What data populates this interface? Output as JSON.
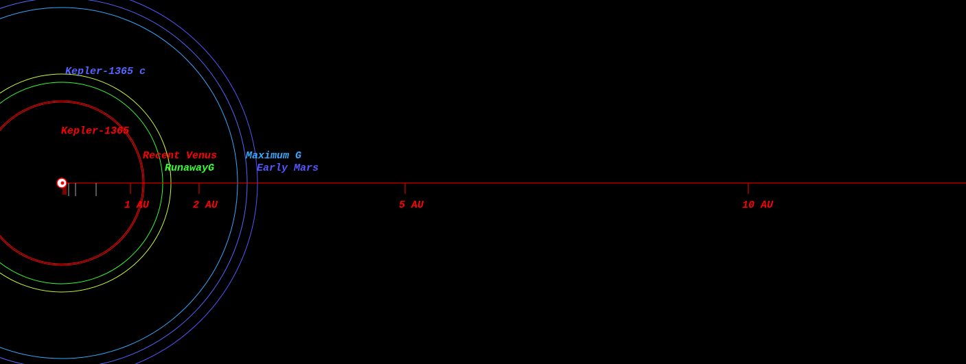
{
  "colors": {
    "background": "#000000",
    "axis": "#ff0000",
    "star": "#ffffff",
    "kepler_1365_orbit": "#ff0000",
    "recent_venus": "#ff0000",
    "runaway_greenhouse": "#33ff33",
    "maximum_greenhouse": "#33aaff",
    "early_mars": "#5555ff",
    "inner_zone_circle": "#ccff33",
    "kepler_1365_c_orbit": "#5566ff"
  },
  "axis": {
    "ticks": [
      {
        "au": 0.1
      },
      {
        "au": 0.2
      },
      {
        "au": 0.5
      },
      {
        "au": 1,
        "label": "1 AU"
      },
      {
        "au": 2,
        "label": "2 AU"
      },
      {
        "au": 5,
        "label": "5 AU"
      },
      {
        "au": 10,
        "label": "10 AU"
      }
    ]
  },
  "orbits": [
    {
      "label": "Kepler-1365",
      "au": 1.2,
      "color": "#ff0000"
    },
    {
      "label": "Kepler-1365 c",
      "au": 2.7,
      "color": "#5566ff"
    }
  ],
  "habitable_zone": [
    {
      "label": "Recent Venus",
      "au": 1.18,
      "color": "#ff0000"
    },
    {
      "label": "RunawayG",
      "au": 1.47,
      "color": "#33ff33"
    },
    {
      "label": "",
      "au": 1.59,
      "color": "#ccff33"
    },
    {
      "label": "Maximum G",
      "au": 2.56,
      "color": "#33aaff"
    },
    {
      "label": "Early Mars",
      "au": 2.85,
      "color": "#5555ff"
    }
  ]
}
